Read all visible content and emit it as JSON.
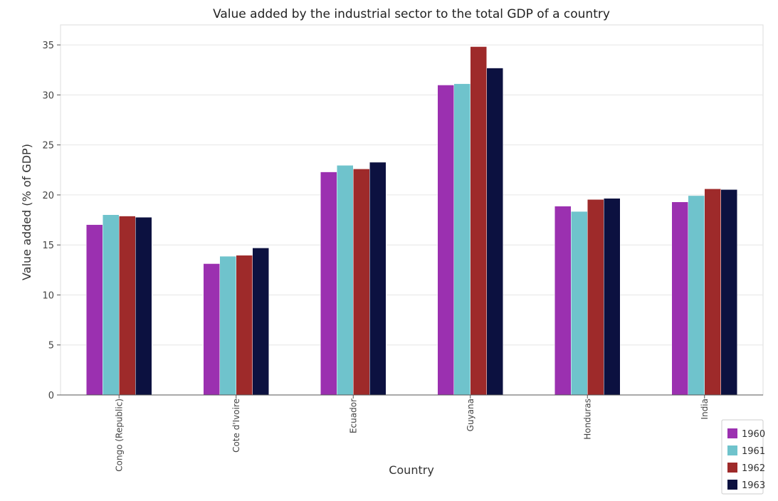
{
  "chart_data": {
    "type": "bar",
    "title": "Value added by the industrial sector to the total GDP of a country",
    "xlabel": "Country",
    "ylabel": "Value added (% of GDP)",
    "ylim": [
      0,
      37
    ],
    "yticks": [
      0,
      5,
      10,
      15,
      20,
      25,
      30,
      35
    ],
    "grid": true,
    "legend_position": "bottom-right",
    "categories": [
      "Congo (Republic)",
      "Cote d'Ivoire",
      "Ecuador",
      "Guyana",
      "Honduras",
      "India"
    ],
    "series": [
      {
        "name": "1960",
        "color": "#9b30b0",
        "values": [
          17.03,
          13.13,
          22.3,
          30.99,
          18.88,
          19.3
        ]
      },
      {
        "name": "1961",
        "color": "#6fc3cc",
        "values": [
          18.02,
          13.87,
          22.96,
          31.12,
          18.35,
          19.93
        ]
      },
      {
        "name": "1962",
        "color": "#9e2a2a",
        "values": [
          17.89,
          13.97,
          22.6,
          34.83,
          19.55,
          20.61
        ]
      },
      {
        "name": "1963",
        "color": "#0c1140",
        "values": [
          17.77,
          14.7,
          23.27,
          32.69,
          19.66,
          20.54
        ]
      }
    ]
  }
}
